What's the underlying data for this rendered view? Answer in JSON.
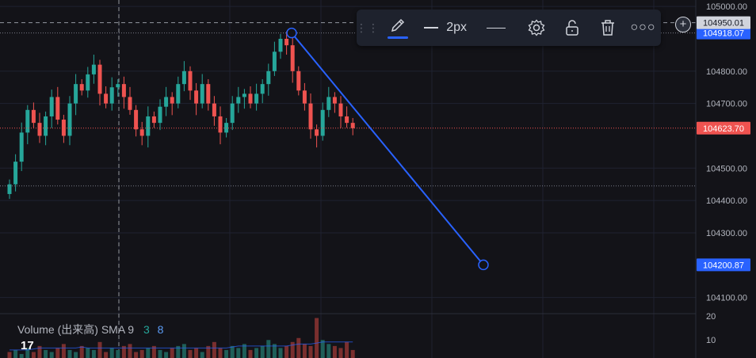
{
  "chart_data": {
    "type": "candlestick",
    "price_axis": {
      "ticks": [
        "105000.00",
        "104800.00",
        "104700.00",
        "104500.00",
        "104400.00",
        "104300.00",
        "104100.00"
      ],
      "ylim": [
        104050,
        105020
      ]
    },
    "badges": {
      "crosshair_price": "104950.01",
      "high_line": "104918.07",
      "last_price": "104623.70",
      "trend_end": "104200.87"
    },
    "trendline": {
      "start_price": 104918.07,
      "end_price": 104200.87,
      "color": "#2962ff"
    },
    "volume_axis": {
      "ticks": [
        "20",
        "10"
      ]
    },
    "colors": {
      "up": "#26a69a",
      "down": "#ef5350",
      "background": "#131318",
      "accent": "#2962ff"
    },
    "candles_close": [
      104450,
      104520,
      104610,
      104680,
      104640,
      104600,
      104660,
      104720,
      104650,
      104600,
      104700,
      104760,
      104740,
      104790,
      104820,
      104730,
      104700,
      104750,
      104760,
      104720,
      104680,
      104620,
      104600,
      104660,
      104640,
      104690,
      104720,
      104700,
      104760,
      104800,
      104740,
      104700,
      104760,
      104700,
      104660,
      104610,
      104640,
      104700,
      104720,
      104730,
      104700,
      104730,
      104760,
      104800,
      104860,
      104900,
      104880,
      104800,
      104740,
      104700,
      104620,
      104600,
      104680,
      104720,
      104700,
      104660,
      104640,
      104623.7
    ],
    "volumes": [
      3,
      4,
      2,
      5,
      3,
      6,
      4,
      3,
      5,
      7,
      4,
      3,
      6,
      5,
      4,
      8,
      3,
      5,
      4,
      6,
      7,
      3,
      4,
      5,
      6,
      4,
      3,
      5,
      6,
      7,
      4,
      5,
      3,
      6,
      8,
      5,
      4,
      6,
      5,
      7,
      4,
      5,
      6,
      9,
      7,
      5,
      6,
      8,
      10,
      7,
      6,
      20,
      9,
      7,
      6,
      5,
      8,
      4
    ],
    "volume_sma": [
      4,
      4,
      4,
      4,
      4.5,
      5,
      5,
      5,
      5,
      5,
      5,
      5,
      5.5,
      5,
      5,
      5,
      5,
      5,
      5,
      5,
      5,
      5,
      5,
      5,
      5,
      5,
      5,
      5,
      5,
      5,
      5,
      5,
      5,
      5,
      5,
      5,
      5,
      5.5,
      6,
      6,
      6,
      6,
      6,
      6,
      6,
      6,
      6,
      6.5,
      7,
      7,
      7,
      7.5,
      8,
      8,
      8,
      8,
      8,
      8
    ]
  },
  "toolbar": {
    "width_label": "2px",
    "grip_icon": "drag-handle-icon",
    "pencil_icon": "pencil-icon",
    "settings_icon": "gear-icon",
    "lock_icon": "unlock-icon",
    "delete_icon": "trash-icon",
    "more_icon": "more-horizontal-icon"
  },
  "volume_legend": {
    "label": "Volume (出来高)",
    "sma_label": "SMA 9",
    "value1": "3",
    "value2": "8"
  },
  "logo_text": "17"
}
